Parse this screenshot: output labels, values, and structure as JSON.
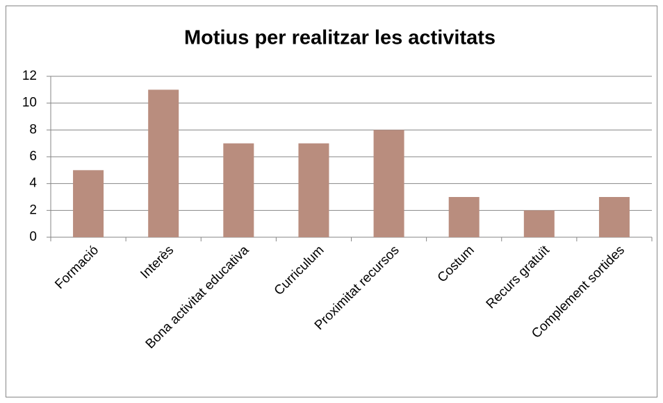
{
  "chart_data": {
    "type": "bar",
    "title": "Motius per realitzar les activitats",
    "categories": [
      "Formació",
      "Interès",
      "Bona activitat educativa",
      "Curriculum",
      "Proximitat recursos",
      "Costum",
      "Recurs gratuït",
      "Complement sortides"
    ],
    "values": [
      5,
      11,
      7,
      7,
      8,
      3,
      2,
      3
    ],
    "color": "#b98d7e",
    "ylim": [
      0,
      12
    ],
    "yticks": [
      0,
      2,
      4,
      6,
      8,
      10,
      12
    ],
    "grid": true
  }
}
